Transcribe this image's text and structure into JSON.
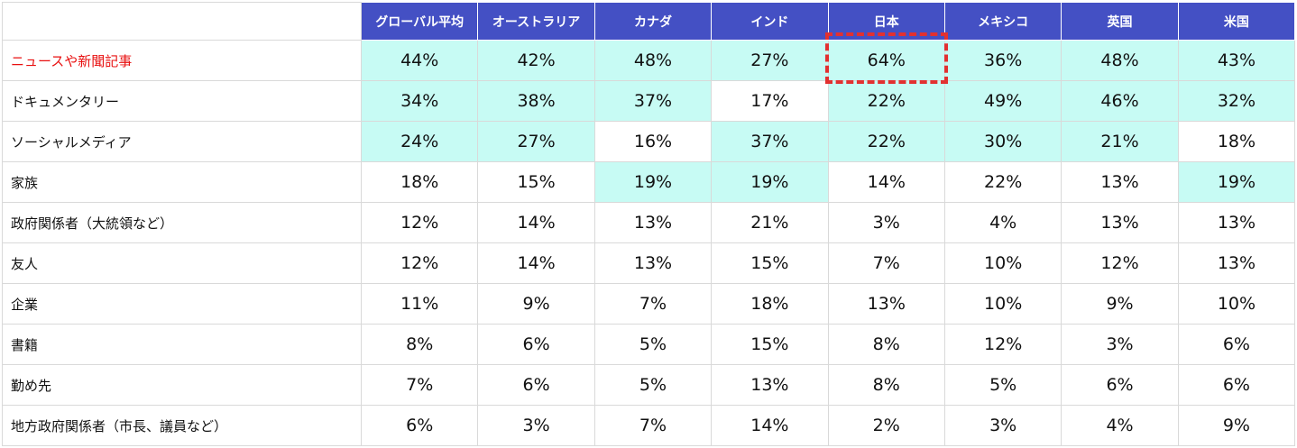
{
  "chart_data": {
    "type": "table",
    "columns": [
      "グローバル平均",
      "オーストラリア",
      "カナダ",
      "インド",
      "日本",
      "メキシコ",
      "英国",
      "米国"
    ],
    "rows": [
      {
        "label": "ニュースや新聞記事",
        "values": [
          "44%",
          "42%",
          "48%",
          "27%",
          "64%",
          "36%",
          "48%",
          "43%"
        ],
        "shaded": [
          1,
          1,
          1,
          1,
          1,
          1,
          1,
          1
        ]
      },
      {
        "label": "ドキュメンタリー",
        "values": [
          "34%",
          "38%",
          "37%",
          "17%",
          "22%",
          "49%",
          "46%",
          "32%"
        ],
        "shaded": [
          1,
          1,
          1,
          0,
          1,
          1,
          1,
          1
        ]
      },
      {
        "label": "ソーシャルメディア",
        "values": [
          "24%",
          "27%",
          "16%",
          "37%",
          "22%",
          "30%",
          "21%",
          "18%"
        ],
        "shaded": [
          1,
          1,
          0,
          1,
          1,
          1,
          1,
          0
        ]
      },
      {
        "label": "家族",
        "values": [
          "18%",
          "15%",
          "19%",
          "19%",
          "14%",
          "22%",
          "13%",
          "19%"
        ],
        "shaded": [
          0,
          0,
          1,
          1,
          0,
          0,
          0,
          1
        ]
      },
      {
        "label": "政府関係者（大統領など）",
        "values": [
          "12%",
          "14%",
          "13%",
          "21%",
          "3%",
          "4%",
          "13%",
          "13%"
        ],
        "shaded": [
          0,
          0,
          0,
          0,
          0,
          0,
          0,
          0
        ]
      },
      {
        "label": "友人",
        "values": [
          "12%",
          "14%",
          "13%",
          "15%",
          "7%",
          "10%",
          "12%",
          "13%"
        ],
        "shaded": [
          0,
          0,
          0,
          0,
          0,
          0,
          0,
          0
        ]
      },
      {
        "label": "企業",
        "values": [
          "11%",
          "9%",
          "7%",
          "18%",
          "13%",
          "10%",
          "9%",
          "10%"
        ],
        "shaded": [
          0,
          0,
          0,
          0,
          0,
          0,
          0,
          0
        ]
      },
      {
        "label": "書籍",
        "values": [
          "8%",
          "6%",
          "5%",
          "15%",
          "8%",
          "12%",
          "3%",
          "6%"
        ],
        "shaded": [
          0,
          0,
          0,
          0,
          0,
          0,
          0,
          0
        ]
      },
      {
        "label": "勤め先",
        "values": [
          "7%",
          "6%",
          "5%",
          "13%",
          "8%",
          "5%",
          "6%",
          "6%"
        ],
        "shaded": [
          0,
          0,
          0,
          0,
          0,
          0,
          0,
          0
        ]
      },
      {
        "label": "地方政府関係者（市長、議員など）",
        "values": [
          "6%",
          "3%",
          "7%",
          "14%",
          "2%",
          "3%",
          "4%",
          "9%"
        ],
        "shaded": [
          0,
          0,
          0,
          0,
          0,
          0,
          0,
          0
        ]
      }
    ],
    "highlighted_row_label": "ニュースや新聞記事",
    "boxed_cell": {
      "row": 0,
      "column": 4
    }
  },
  "colors": {
    "header_bg": "#4450c4",
    "header_text": "#ffffff",
    "shaded_cell": "#c7fbf4",
    "highlight_label": "#e81010",
    "box_border": "#e23030"
  }
}
